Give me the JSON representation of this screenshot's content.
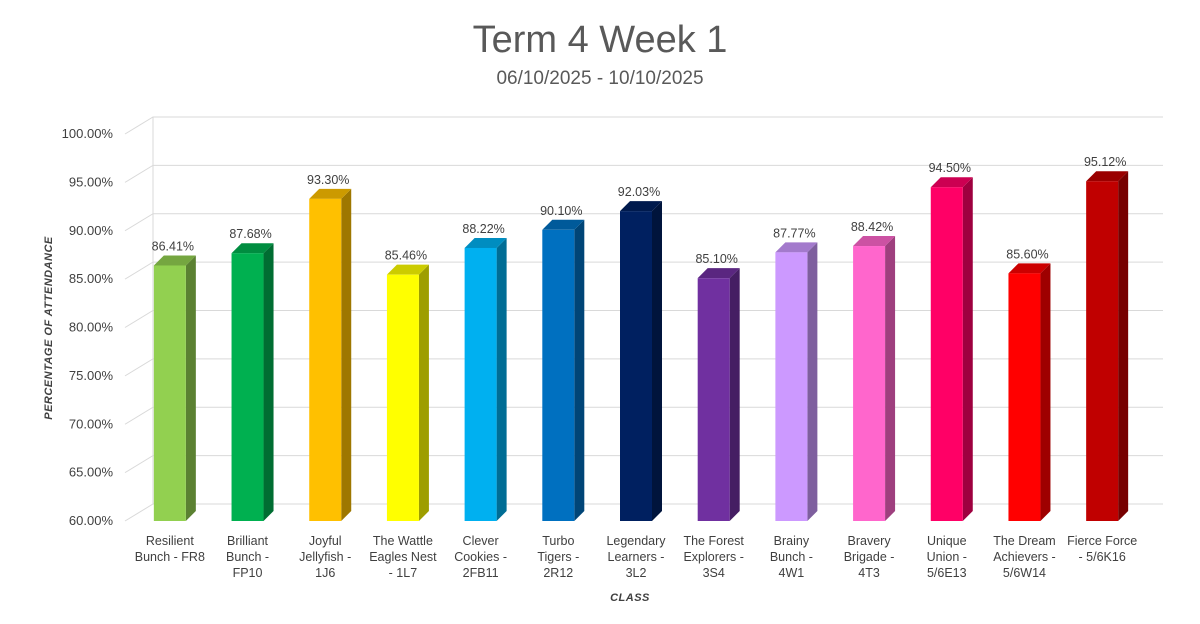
{
  "chart_data": {
    "type": "bar",
    "title": "Term 4 Week 1",
    "subtitle": "06/10/2025 - 10/10/2025",
    "xlabel": "CLASS",
    "ylabel": "PERCENTAGE OF ATTENDANCE",
    "ylim": [
      60,
      100
    ],
    "ytick_step": 5,
    "ytick_labels": [
      "60.00%",
      "65.00%",
      "70.00%",
      "75.00%",
      "80.00%",
      "85.00%",
      "90.00%",
      "95.00%",
      "100.00%"
    ],
    "grid": true,
    "legend": "none",
    "categories": [
      [
        "Resilient",
        "Bunch - FR8"
      ],
      [
        "Brilliant",
        "Bunch -",
        "FP10"
      ],
      [
        "Joyful",
        "Jellyfish -",
        "1J6"
      ],
      [
        "The Wattle",
        "Eagles Nest",
        "- 1L7"
      ],
      [
        "Clever",
        "Cookies -",
        "2FB11"
      ],
      [
        "Turbo",
        "Tigers -",
        "2R12"
      ],
      [
        "Legendary",
        "Learners -",
        "3L2"
      ],
      [
        "The Forest",
        "Explorers -",
        "3S4"
      ],
      [
        "Brainy",
        "Bunch -",
        "4W1"
      ],
      [
        "Bravery",
        "Brigade -",
        "4T3"
      ],
      [
        "Unique",
        "Union -",
        "5/6E13"
      ],
      [
        "The Dream",
        "Achievers -",
        "5/6W14"
      ],
      [
        "Fierce Force",
        "- 5/6K16"
      ]
    ],
    "values": [
      86.41,
      87.68,
      93.3,
      85.46,
      88.22,
      90.1,
      92.03,
      85.1,
      87.77,
      88.42,
      94.5,
      85.6,
      95.12
    ],
    "data_labels": [
      "86.41%",
      "87.68%",
      "93.30%",
      "85.46%",
      "88.22%",
      "90.10%",
      "92.03%",
      "85.10%",
      "87.77%",
      "88.42%",
      "94.50%",
      "85.60%",
      "95.12%"
    ],
    "colors": [
      "#92d050",
      "#00b050",
      "#ffc000",
      "#ffff00",
      "#00b0f0",
      "#0070c0",
      "#002060",
      "#7030a0",
      "#cc99ff",
      "#ff66cc",
      "#ff0066",
      "#ff0000",
      "#c00000"
    ]
  }
}
